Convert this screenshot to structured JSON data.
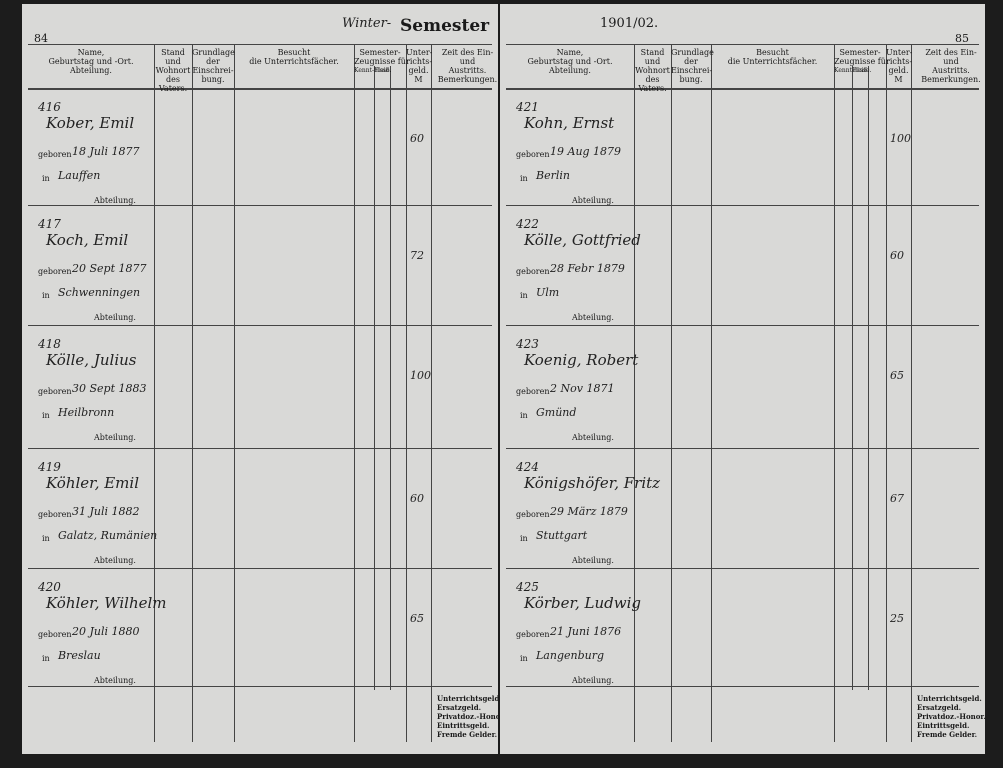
{
  "pages": [
    {
      "page_number": "84",
      "heading": [
        "Winter-",
        "Semester"
      ],
      "columns": [
        [
          "Name,",
          "Geburtstag und -Ort.",
          "Abteilung."
        ],
        [
          "Stand",
          "und",
          "Wohnort",
          "des",
          "Vaters."
        ],
        [
          "Grundlage",
          "der",
          "Einschrei-",
          "bung."
        ],
        [
          "Besucht",
          "die Unterrichtsfächer."
        ],
        [
          "Semester-",
          "Zeugnisse für",
          "Kennt-nisse.",
          "Fleiß."
        ],
        [
          "Unter-",
          "richts-",
          "geld.",
          "M"
        ],
        [
          "Zeit des Ein-",
          "und",
          "Austritts.",
          "Bemerkungen."
        ]
      ],
      "rows": [
        {
          "number": "416",
          "name": "Kober, Emil",
          "born": "geboren",
          "date": "18 Juli 1877",
          "in": "in",
          "place": "Lauffen",
          "dept": "Abteilung.",
          "fee": "60"
        },
        {
          "number": "417",
          "name": "Koch, Emil",
          "born": "geboren",
          "date": "20 Sept 1877",
          "in": "in",
          "place": "Schwenningen",
          "dept": "Abteilung.",
          "fee": "72"
        },
        {
          "number": "418",
          "name": "Kölle, Julius",
          "born": "geboren",
          "date": "30 Sept 1883",
          "in": "in",
          "place": "Heilbronn",
          "dept": "Abteilung.",
          "fee": "100"
        },
        {
          "number": "419",
          "name": "Köhler, Emil",
          "born": "geboren",
          "date": "31 Juli 1882",
          "in": "in",
          "place": "Galatz, Rumänien",
          "dept": "Abteilung.",
          "fee": "60"
        },
        {
          "number": "420",
          "name": "Köhler, Wilhelm",
          "born": "geboren",
          "date": "20 Juli 1880",
          "in": "in",
          "place": "Breslau",
          "dept": "Abteilung.",
          "fee": "65"
        }
      ],
      "footer": [
        "Unterrichtsgeld.",
        "Ersatzgeld.",
        "Privatdoz.-Honor.",
        "Eintrittsgeld.",
        "Fremde Gelder."
      ]
    },
    {
      "page_number": "85",
      "heading": [
        "1901/02."
      ],
      "columns": [
        [
          "Name,",
          "Geburtstag und -Ort.",
          "Abteilung."
        ],
        [
          "Stand",
          "und",
          "Wohnort",
          "des",
          "Vaters."
        ],
        [
          "Grundlage",
          "der",
          "Einschrei-",
          "bung."
        ],
        [
          "Besucht",
          "die Unterrichtsfächer."
        ],
        [
          "Semester-",
          "Zeugnisse für",
          "Kennt-nisse.",
          "Fleiß."
        ],
        [
          "Unter-",
          "richts-",
          "geld.",
          "M"
        ],
        [
          "Zeit des Ein-",
          "und",
          "Austritts.",
          "Bemerkungen."
        ]
      ],
      "rows": [
        {
          "number": "421",
          "name": "Kohn, Ernst",
          "born": "geboren",
          "date": "19 Aug 1879",
          "in": "in",
          "place": "Berlin",
          "dept": "Abteilung.",
          "fee": "100"
        },
        {
          "number": "422",
          "name": "Kölle, Gottfried",
          "born": "geboren",
          "date": "28 Febr 1879",
          "in": "in",
          "place": "Ulm",
          "dept": "Abteilung.",
          "fee": "60"
        },
        {
          "number": "423",
          "name": "Koenig, Robert",
          "born": "geboren",
          "date": "2 Nov 1871",
          "in": "in",
          "place": "Gmünd",
          "dept": "Abteilung.",
          "fee": "65"
        },
        {
          "number": "424",
          "name": "Königshöfer, Fritz",
          "born": "geboren",
          "date": "29 März 1879",
          "in": "in",
          "place": "Stuttgart",
          "dept": "Abteilung.",
          "fee": "67"
        },
        {
          "number": "425",
          "name": "Körber, Ludwig",
          "born": "geboren",
          "date": "21 Juni 1876",
          "in": "in",
          "place": "Langenburg",
          "dept": "Abteilung.",
          "fee": "25"
        }
      ],
      "footer": [
        "Unterrichtsgeld.",
        "Ersatzgeld.",
        "Privatdoz.-Honor.",
        "Eintrittsgeld.",
        "Fremde Gelder."
      ]
    }
  ]
}
